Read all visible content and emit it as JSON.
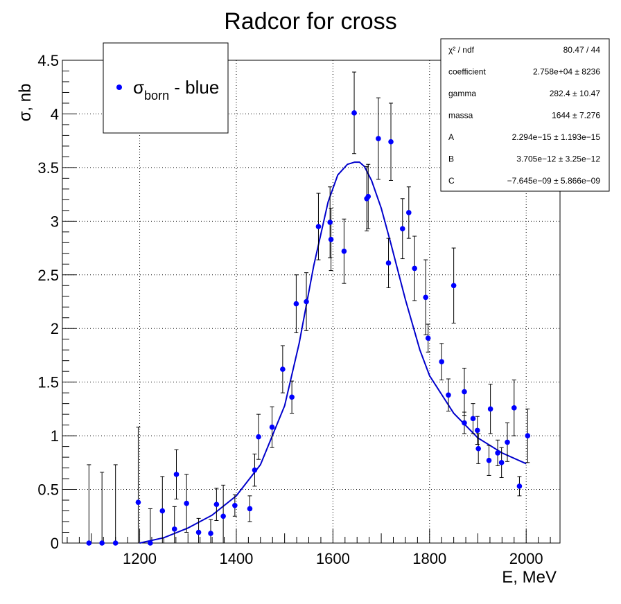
{
  "chart_data": {
    "type": "scatter",
    "title": "Radcor for cross",
    "xlabel": "E, MeV",
    "ylabel": "σ, nb",
    "xlim": [
      1040,
      2070
    ],
    "ylim": [
      0,
      4.5
    ],
    "x_ticks": [
      1200,
      1400,
      1600,
      1800,
      2000
    ],
    "y_ticks": [
      0,
      0.5,
      1,
      1.5,
      2,
      2.5,
      3,
      3.5,
      4,
      4.5
    ],
    "x_tick_labels": [
      "1200",
      "1400",
      "1600",
      "1800",
      "2000"
    ],
    "y_tick_labels": [
      "0",
      "0.5",
      "1",
      "1.5",
      "2",
      "2.5",
      "3",
      "3.5",
      "4",
      "4.5"
    ],
    "grid": true,
    "legend": {
      "position": "top-left",
      "symbol": "σ",
      "subscript": "born",
      "suffix": " - blue"
    },
    "colors": {
      "points": "#0000ff",
      "fit": "#0000cc",
      "errors": "#000000"
    },
    "series": [
      {
        "type": "scatter-errorbars",
        "x": [
          1095,
          1122,
          1150,
          1197,
          1222,
          1247,
          1272,
          1276,
          1297,
          1322,
          1347,
          1359,
          1373,
          1397,
          1428,
          1438,
          1446,
          1474,
          1496,
          1515,
          1524,
          1545,
          1570,
          1594,
          1596,
          1623,
          1644,
          1670,
          1673,
          1694,
          1715,
          1720,
          1744,
          1757,
          1769,
          1792,
          1797,
          1825,
          1839,
          1850,
          1872,
          1872,
          1890,
          1899,
          1901,
          1923,
          1926,
          1941,
          1949,
          1961,
          1975,
          1986,
          2003
        ],
        "y": [
          0.0,
          0.0,
          0.0,
          0.38,
          0.0,
          0.3,
          0.13,
          0.64,
          0.37,
          0.1,
          0.09,
          0.36,
          0.25,
          0.35,
          0.32,
          0.68,
          0.99,
          1.08,
          1.62,
          1.36,
          2.23,
          2.25,
          2.95,
          2.99,
          2.83,
          2.72,
          4.01,
          3.21,
          3.23,
          3.77,
          2.61,
          3.74,
          2.93,
          3.08,
          2.56,
          2.29,
          1.91,
          1.69,
          1.38,
          2.4,
          1.41,
          1.12,
          1.16,
          1.05,
          0.88,
          0.77,
          1.25,
          0.84,
          0.75,
          0.94,
          1.26,
          0.53,
          1.0
        ],
        "yerr": [
          0.73,
          0.66,
          0.73,
          0.7,
          0.32,
          0.32,
          0.21,
          0.23,
          0.27,
          0.13,
          0.13,
          0.15,
          0.29,
          0.1,
          0.12,
          0.15,
          0.21,
          0.19,
          0.22,
          0.15,
          0.27,
          0.27,
          0.31,
          0.33,
          0.29,
          0.3,
          0.38,
          0.3,
          0.3,
          0.38,
          0.23,
          0.36,
          0.28,
          0.24,
          0.3,
          0.35,
          0.13,
          0.17,
          0.15,
          0.35,
          0.22,
          0.1,
          0.14,
          0.13,
          0.14,
          0.14,
          0.23,
          0.12,
          0.14,
          0.18,
          0.26,
          0.09,
          0.25
        ]
      },
      {
        "type": "fit-line",
        "x": [
          1200,
          1250,
          1300,
          1350,
          1400,
          1450,
          1500,
          1530,
          1560,
          1590,
          1610,
          1630,
          1645,
          1655,
          1665,
          1680,
          1700,
          1720,
          1750,
          1780,
          1800,
          1850,
          1900,
          1950,
          2000
        ],
        "y": [
          0.0,
          0.05,
          0.14,
          0.26,
          0.44,
          0.73,
          1.28,
          1.86,
          2.58,
          3.18,
          3.43,
          3.53,
          3.55,
          3.55,
          3.51,
          3.38,
          3.12,
          2.79,
          2.27,
          1.8,
          1.56,
          1.21,
          0.98,
          0.84,
          0.74
        ]
      }
    ],
    "stats": [
      {
        "label": "χ² / ndf",
        "value": "80.47 / 44"
      },
      {
        "label": "coefficient",
        "value": "2.758e+04 ±  8236"
      },
      {
        "label": "gamma",
        "value": "282.4 ± 10.47"
      },
      {
        "label": "massa",
        "value": "1644 ± 7.276"
      },
      {
        "label": "A",
        "value": "2.294e−15 ± 1.193e−15"
      },
      {
        "label": "B",
        "value": "3.705e−12 ± 3.25e−12"
      },
      {
        "label": "C",
        "value": "−7.645e−09 ± 5.866e−09"
      }
    ]
  }
}
